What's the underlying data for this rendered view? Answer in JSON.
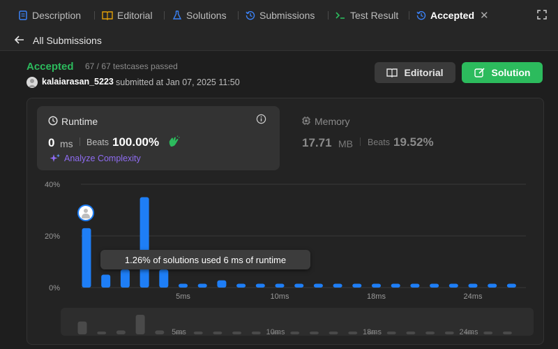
{
  "tabs": [
    {
      "label": "Description",
      "icon": "description-icon"
    },
    {
      "label": "Editorial",
      "icon": "book-icon"
    },
    {
      "label": "Solutions",
      "icon": "flask-icon"
    },
    {
      "label": "Submissions",
      "icon": "history-icon"
    },
    {
      "label": "Test Result",
      "icon": "terminal-icon"
    },
    {
      "label": "Accepted",
      "icon": "history-icon",
      "active": true
    }
  ],
  "subheader": {
    "back_label": "All Submissions"
  },
  "result": {
    "status": "Accepted",
    "testcases": "67 / 67 testcases passed",
    "username": "kalaiarasan_5223",
    "submitted": "submitted at Jan 07, 2025 11:50"
  },
  "actions": {
    "editorial": "Editorial",
    "solution": "Solution"
  },
  "runtime": {
    "label": "Runtime",
    "value": "0",
    "unit": "ms",
    "beats_label": "Beats",
    "beats_value": "100.00%",
    "analyze": "Analyze Complexity"
  },
  "memory": {
    "label": "Memory",
    "value": "17.71",
    "unit": "MB",
    "beats_label": "Beats",
    "beats_value": "19.52%"
  },
  "tooltip": "1.26% of solutions used 6 ms of runtime",
  "colors": {
    "accent_green": "#2cbb5d",
    "bar_blue": "#1e7ef6",
    "purple": "#8f6cf2"
  },
  "chart_data": {
    "type": "bar",
    "title": "",
    "xlabel": "",
    "ylabel": "",
    "ylim": [
      0,
      40
    ],
    "y_ticks": [
      "0%",
      "20%",
      "40%"
    ],
    "x_tick_labels": [
      "5ms",
      "10ms",
      "18ms",
      "24ms"
    ],
    "x_tick_bar_index": [
      5,
      10,
      15,
      20
    ],
    "values": [
      23,
      5,
      7,
      35,
      7,
      1.5,
      1.5,
      2.8,
      1.5,
      1.5,
      1.5,
      1.5,
      1.5,
      1.5,
      1.5,
      1.5,
      1.5,
      1.5,
      1.5,
      1.5,
      1.5,
      1.5,
      1.5
    ],
    "grid": true,
    "legend": "none"
  },
  "mini_chart": {
    "x_tick_labels": [
      "5ms",
      "10ms",
      "18ms",
      "24ms"
    ]
  }
}
